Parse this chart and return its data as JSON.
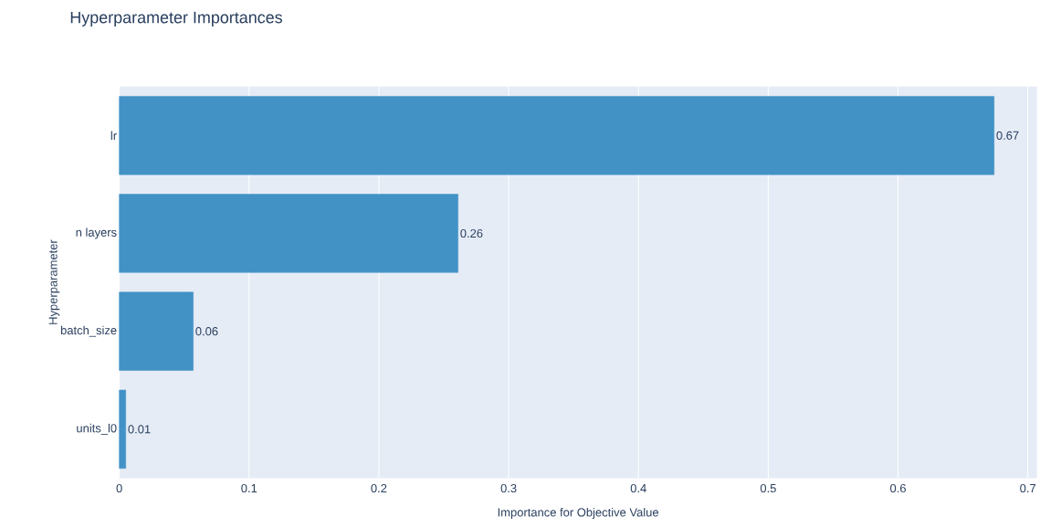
{
  "chart_data": {
    "type": "bar",
    "orientation": "horizontal",
    "title": "Hyperparameter Importances",
    "xlabel": "Importance for Objective Value",
    "ylabel": "Hyperparameter",
    "categories": [
      "lr",
      "n layers",
      "batch_size",
      "units_l0"
    ],
    "values": [
      0.674,
      0.261,
      0.057,
      0.005
    ],
    "value_labels": [
      "0.67",
      "0.26",
      "0.06",
      "0.01"
    ],
    "color": "#4292c6",
    "xlim": [
      0,
      0.707
    ],
    "xticks": [
      0,
      0.1,
      0.2,
      0.3,
      0.4,
      0.5,
      0.6,
      0.7
    ],
    "grid": "x"
  }
}
